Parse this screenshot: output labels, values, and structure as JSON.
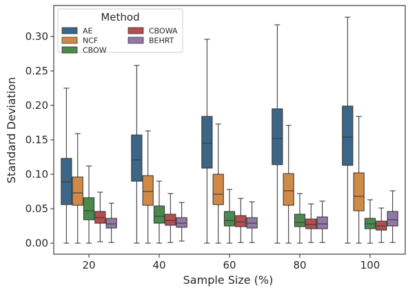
{
  "chart_data": {
    "type": "boxplot",
    "xlabel": "Sample Size (%)",
    "ylabel": "Standard Deviation",
    "ylim": [
      -0.016,
      0.345
    ],
    "yticks": [
      "0.00",
      "0.05",
      "0.10",
      "0.15",
      "0.20",
      "0.25",
      "0.30"
    ],
    "ytick_values": [
      0,
      0.05,
      0.1,
      0.15,
      0.2,
      0.25,
      0.3
    ],
    "categories": [
      "20",
      "40",
      "60",
      "80",
      "100"
    ],
    "grid": false,
    "legend": {
      "title": "Method",
      "placement": "top-left",
      "columns": 2
    },
    "series": [
      {
        "name": "AE",
        "color": "#3b6688",
        "boxes": [
          {
            "min": 0.0,
            "q1": 0.056,
            "median": 0.089,
            "q3": 0.123,
            "max": 0.225
          },
          {
            "min": 0.0,
            "q1": 0.09,
            "median": 0.121,
            "q3": 0.157,
            "max": 0.258
          },
          {
            "min": 0.0,
            "q1": 0.109,
            "median": 0.145,
            "q3": 0.184,
            "max": 0.296
          },
          {
            "min": 0.0,
            "q1": 0.114,
            "median": 0.152,
            "q3": 0.195,
            "max": 0.317
          },
          {
            "min": 0.0,
            "q1": 0.113,
            "median": 0.154,
            "q3": 0.199,
            "max": 0.328
          }
        ]
      },
      {
        "name": "NCF",
        "color": "#d18a46",
        "boxes": [
          {
            "min": 0.0,
            "q1": 0.055,
            "median": 0.073,
            "q3": 0.096,
            "max": 0.159
          },
          {
            "min": 0.0,
            "q1": 0.055,
            "median": 0.075,
            "q3": 0.098,
            "max": 0.163
          },
          {
            "min": 0.0,
            "q1": 0.056,
            "median": 0.071,
            "q3": 0.1,
            "max": 0.173
          },
          {
            "min": 0.0,
            "q1": 0.055,
            "median": 0.076,
            "q3": 0.101,
            "max": 0.171
          },
          {
            "min": 0.0,
            "q1": 0.047,
            "median": 0.068,
            "q3": 0.102,
            "max": 0.184
          }
        ]
      },
      {
        "name": "CBOW",
        "color": "#4a8a4d",
        "boxes": [
          {
            "min": 0.0,
            "q1": 0.034,
            "median": 0.047,
            "q3": 0.066,
            "max": 0.112
          },
          {
            "min": 0.0,
            "q1": 0.029,
            "median": 0.039,
            "q3": 0.054,
            "max": 0.09
          },
          {
            "min": 0.0,
            "q1": 0.025,
            "median": 0.033,
            "q3": 0.046,
            "max": 0.078
          },
          {
            "min": 0.0,
            "q1": 0.024,
            "median": 0.03,
            "q3": 0.042,
            "max": 0.072
          },
          {
            "min": 0.0,
            "q1": 0.021,
            "median": 0.028,
            "q3": 0.036,
            "max": 0.063
          }
        ]
      },
      {
        "name": "CBOWA",
        "color": "#b44e4f",
        "boxes": [
          {
            "min": 0.002,
            "q1": 0.029,
            "median": 0.037,
            "q3": 0.046,
            "max": 0.074
          },
          {
            "min": 0.001,
            "q1": 0.026,
            "median": 0.033,
            "q3": 0.042,
            "max": 0.072
          },
          {
            "min": 0.001,
            "q1": 0.024,
            "median": 0.031,
            "q3": 0.04,
            "max": 0.065
          },
          {
            "min": 0.001,
            "q1": 0.021,
            "median": 0.027,
            "q3": 0.035,
            "max": 0.057
          },
          {
            "min": 0.001,
            "q1": 0.019,
            "median": 0.025,
            "q3": 0.032,
            "max": 0.051
          }
        ]
      },
      {
        "name": "BEHRT",
        "color": "#9278a4",
        "boxes": [
          {
            "min": 0.001,
            "q1": 0.022,
            "median": 0.028,
            "q3": 0.036,
            "max": 0.058
          },
          {
            "min": 0.003,
            "q1": 0.023,
            "median": 0.029,
            "q3": 0.037,
            "max": 0.059
          },
          {
            "min": 0.001,
            "q1": 0.022,
            "median": 0.029,
            "q3": 0.037,
            "max": 0.06
          },
          {
            "min": 0.001,
            "q1": 0.021,
            "median": 0.028,
            "q3": 0.038,
            "max": 0.061
          },
          {
            "min": 0.001,
            "q1": 0.025,
            "median": 0.034,
            "q3": 0.046,
            "max": 0.076
          }
        ]
      }
    ]
  }
}
